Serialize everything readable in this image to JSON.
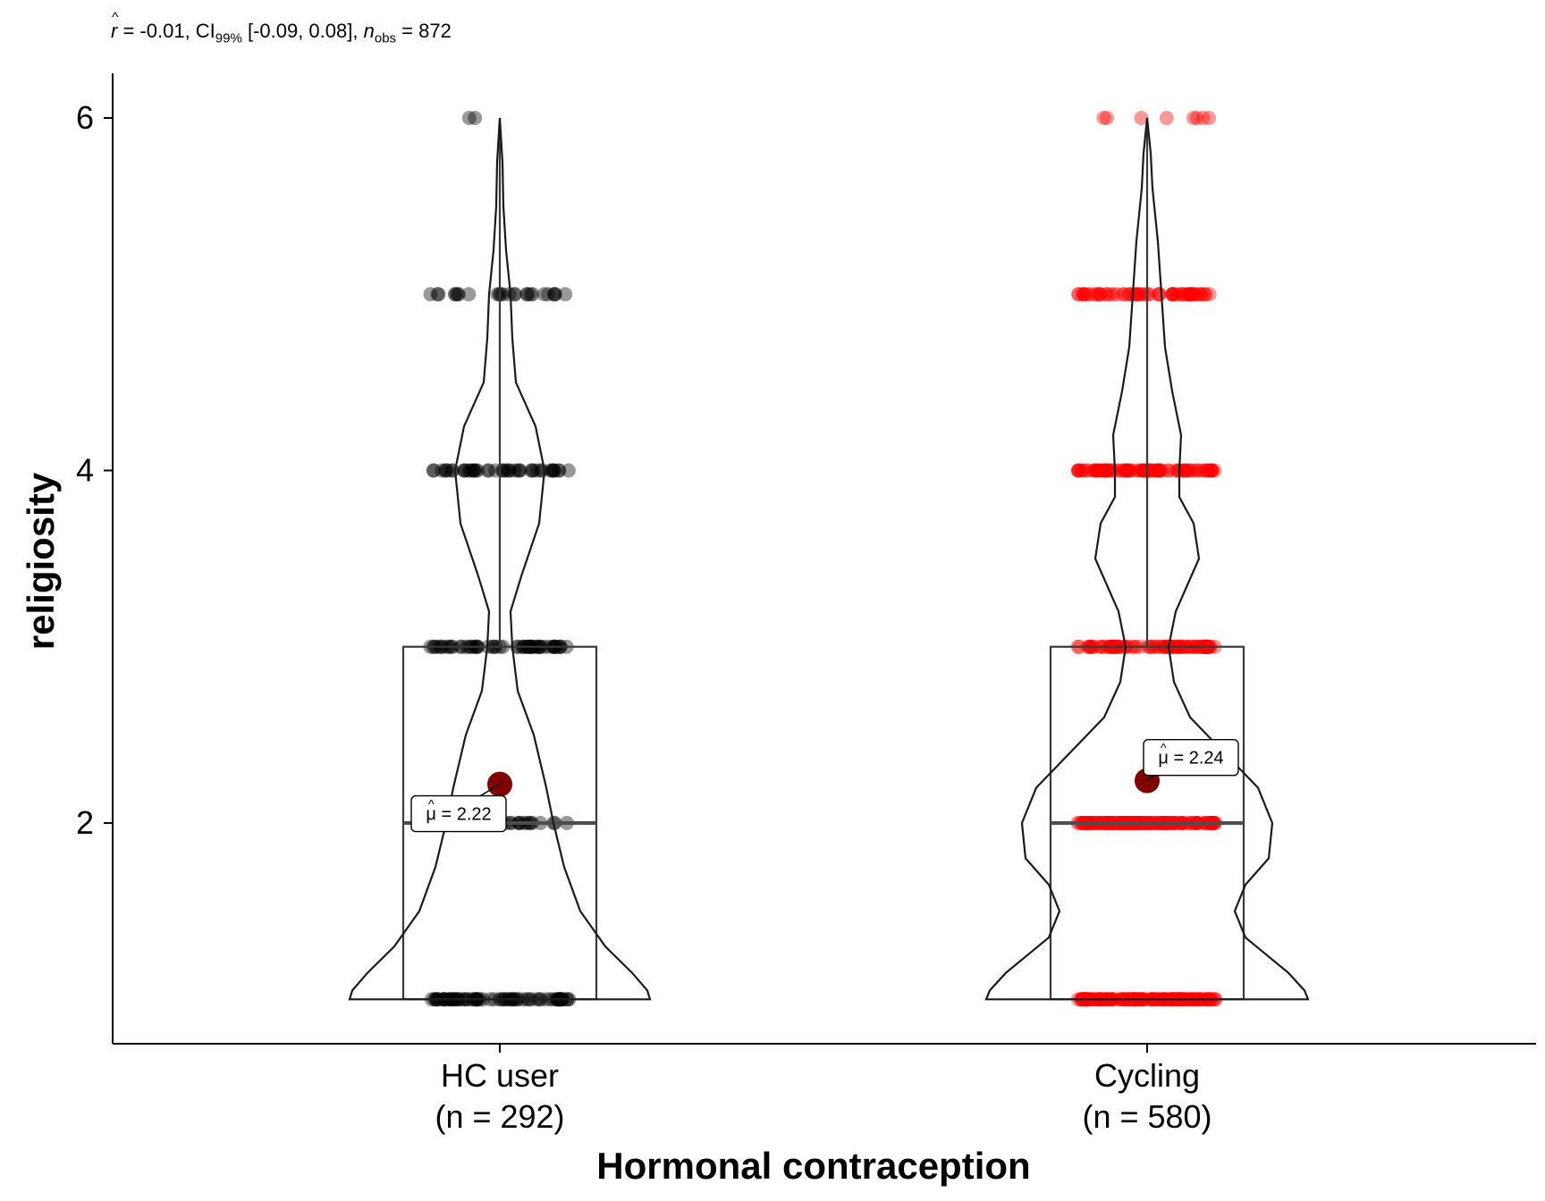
{
  "chart_data": {
    "type": "violin",
    "subtitle": {
      "r_value": "-0.01",
      "ci_label": "CI",
      "ci_level": "99%",
      "ci_interval": "[-0.09, 0.08]",
      "n_obs": "872"
    },
    "xlabel": "Hormonal contraception",
    "ylabel": "religiosity",
    "ylim": [
      0.75,
      6.25
    ],
    "yticks": [
      2,
      4,
      6
    ],
    "groups": [
      {
        "name": "HC user",
        "n_label": "(n = 292)",
        "color": "#000000",
        "box": {
          "min": 1,
          "q1": 1,
          "median": 2,
          "q3": 3,
          "max": 6
        },
        "mean": 2.22,
        "mean_label": "μ = 2.22",
        "points": {
          "1": 70,
          "2": 35,
          "3": 55,
          "4": 45,
          "5": 25,
          "6": 2
        }
      },
      {
        "name": "Cycling",
        "n_label": "(n = 580)",
        "color": "#ff0000",
        "box": {
          "min": 1,
          "q1": 1,
          "median": 2,
          "q3": 3,
          "max": 6
        },
        "mean": 2.24,
        "mean_label": "μ = 2.24",
        "points": {
          "1": 140,
          "2": 150,
          "3": 90,
          "4": 95,
          "5": 60,
          "6": 8
        }
      }
    ],
    "mean_color": "#800000",
    "grid": false
  }
}
